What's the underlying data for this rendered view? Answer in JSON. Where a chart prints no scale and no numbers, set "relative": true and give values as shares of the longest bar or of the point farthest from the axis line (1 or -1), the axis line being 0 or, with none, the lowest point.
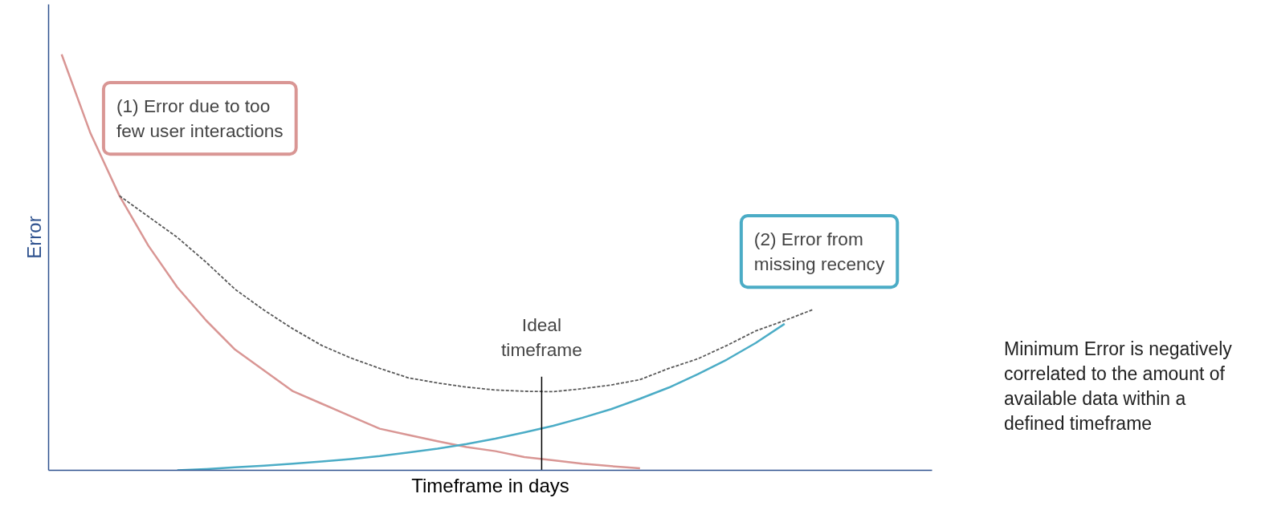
{
  "chart_data": {
    "type": "line",
    "relative": true,
    "xlabel": "Timeframe in days",
    "ylabel": "Error",
    "categories": [
      null,
      null,
      null,
      null,
      null,
      null,
      null,
      null,
      null,
      null,
      null,
      null,
      null,
      null,
      null,
      null,
      null,
      null,
      null,
      null,
      null,
      null,
      null,
      null,
      null,
      null,
      null,
      null,
      null,
      null,
      null
    ],
    "series": [
      {
        "color": "#d99694",
        "values": [
          1.0,
          0.81,
          0.66,
          0.54,
          0.44,
          0.36,
          0.29,
          0.24,
          0.19,
          0.16,
          0.13,
          0.1,
          0.085,
          0.07,
          0.056,
          0.046,
          0.032,
          0.024,
          0.016,
          0.01,
          0.005,
          null,
          null,
          null,
          null,
          null,
          null,
          null,
          null,
          null,
          null
        ]
      },
      {
        "color": "#4bacc6",
        "values": [
          null,
          null,
          null,
          null,
          0.0,
          0.003,
          0.007,
          0.011,
          0.016,
          0.021,
          0.027,
          0.034,
          0.043,
          0.052,
          0.063,
          0.076,
          0.091,
          0.107,
          0.126,
          0.147,
          0.172,
          0.199,
          0.231,
          0.266,
          0.306,
          0.352,
          null,
          null,
          null,
          null,
          null
        ]
      },
      {
        "color": "#595959",
        "line_style": "dashed",
        "values": [
          null,
          null,
          0.66,
          0.61,
          0.56,
          0.5,
          0.435,
          0.385,
          0.34,
          0.3,
          0.27,
          0.245,
          0.222,
          0.21,
          0.2,
          0.193,
          0.19,
          0.189,
          0.196,
          0.205,
          0.218,
          0.245,
          0.268,
          0.3,
          0.335,
          0.36,
          0.387,
          null,
          null,
          null,
          null
        ]
      }
    ],
    "annotations": [
      "(1) Error due to too few user interactions",
      "(2) Error from missing recency",
      "Ideal timeframe",
      "Minimum Error is negatively correlated to the amount of available data within a defined timeframe"
    ]
  }
}
